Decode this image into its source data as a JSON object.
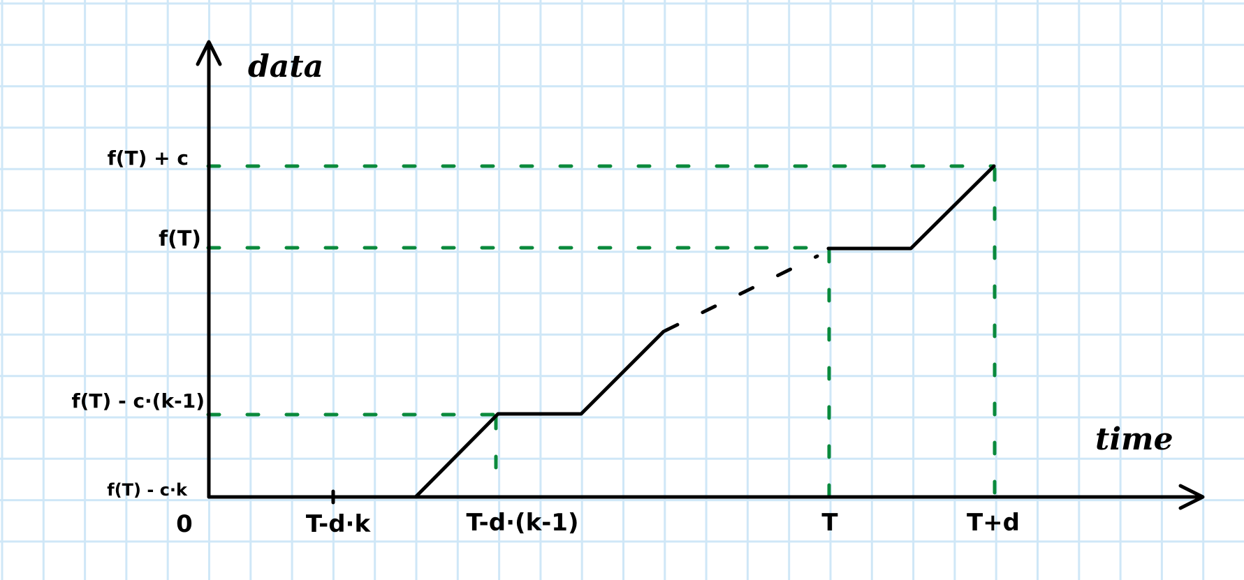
{
  "diagram": {
    "axis_titles": {
      "y": "data",
      "x": "time"
    },
    "y_labels": {
      "top": "f(T) + c",
      "mid": "f(T)",
      "low": "f(T) - c·(k-1)",
      "base": "f(T) - c·k"
    },
    "x_labels": {
      "origin": "0",
      "t_dk": "T-d·k",
      "t_dk1": "T-d·(k-1)",
      "t": "T",
      "t_plus_d": "T+d"
    },
    "colors": {
      "grid": "#cfe7f7",
      "ink": "#000000",
      "guide": "#0a8a3c",
      "background": "#ffffff"
    }
  }
}
